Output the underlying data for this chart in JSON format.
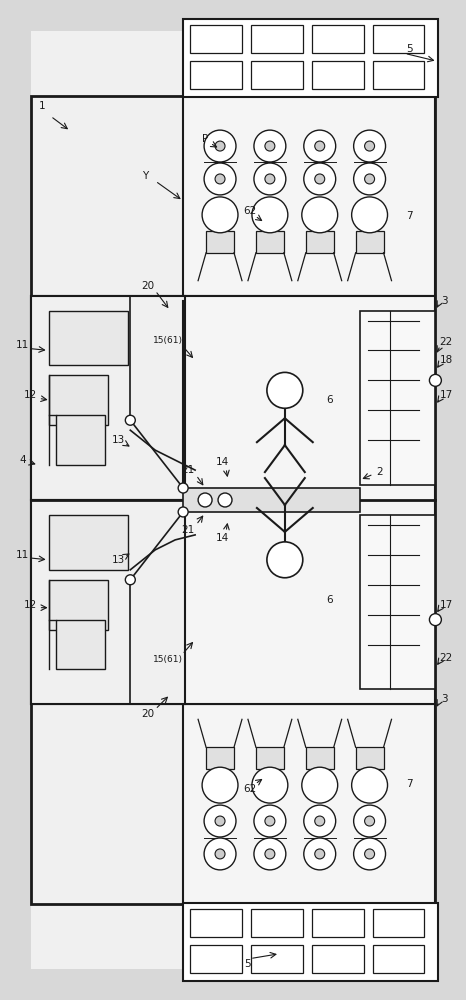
{
  "bg_color": "#d8d8d8",
  "line_color": "#1a1a1a",
  "white": "#ffffff",
  "fig_width": 4.66,
  "fig_height": 10.0,
  "dpi": 100
}
